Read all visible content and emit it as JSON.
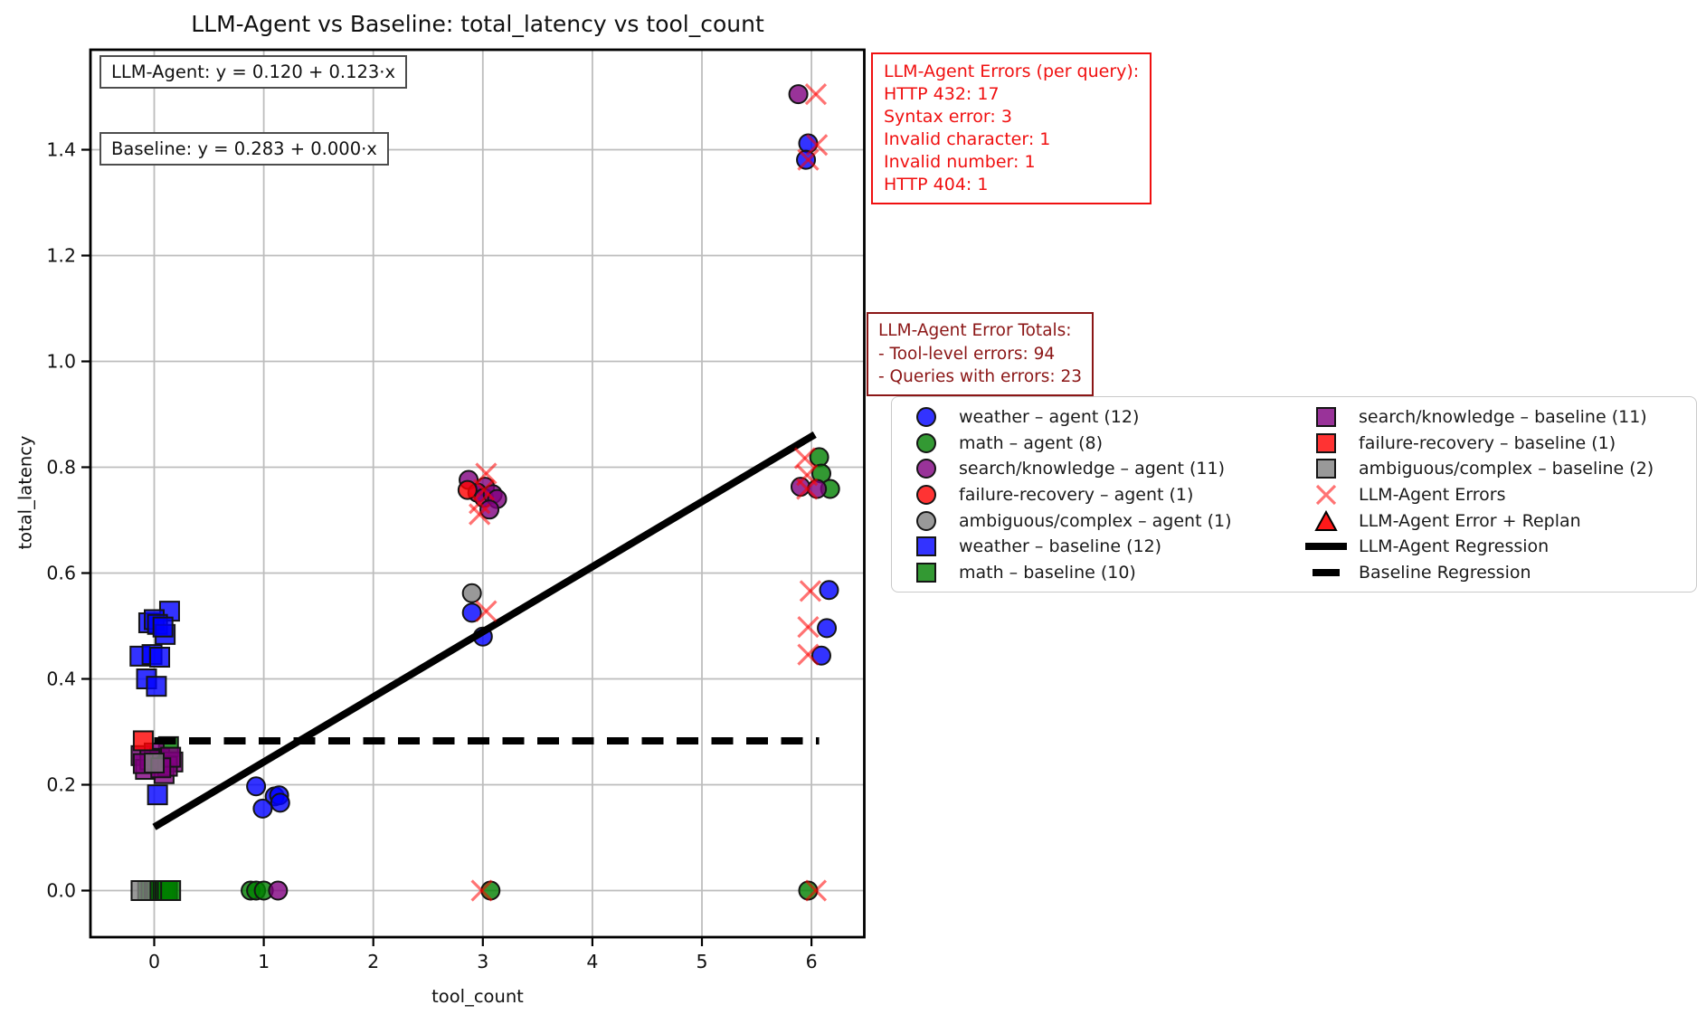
{
  "title": "LLM-Agent vs Baseline: total_latency vs tool_count",
  "axes": {
    "xlabel": "tool_count",
    "ylabel": "total_latency",
    "x_ticks": [
      0,
      1,
      2,
      3,
      4,
      5,
      6
    ],
    "x_tick_labels": [
      "0",
      "1",
      "2",
      "3",
      "4",
      "5",
      "6"
    ],
    "y_ticks": [
      0.0,
      0.2,
      0.4,
      0.6,
      0.8,
      1.0,
      1.2,
      1.4
    ],
    "y_tick_labels": [
      "0.0",
      "0.2",
      "0.4",
      "0.6",
      "0.8",
      "1.0",
      "1.2",
      "1.4"
    ],
    "xlim": [
      -0.58,
      6.48
    ],
    "ylim": [
      -0.09,
      1.59
    ],
    "grid": true
  },
  "annotations": {
    "agent_eq": "LLM-Agent: y = 0.120 + 0.123·x",
    "baseline_eq": "Baseline: y = 0.283 + 0.000·x",
    "error_box": {
      "title": "LLM-Agent Errors (per query):",
      "lines": [
        "HTTP 432: 17",
        "Syntax error: 3",
        "Invalid character: 1",
        "Invalid number: 1",
        "HTTP 404: 1"
      ],
      "color": "#f01010"
    },
    "totals_box": {
      "title": "LLM-Agent Error Totals:",
      "lines": [
        "- Tool-level errors: 94",
        "- Queries with errors: 23"
      ],
      "color": "#8b1616"
    }
  },
  "chart_data": {
    "type": "scatter",
    "title": "LLM-Agent vs Baseline: total_latency vs tool_count",
    "xlabel": "tool_count",
    "ylabel": "total_latency",
    "legend_position": "center right",
    "series": [
      {
        "name": "weather – agent (12)",
        "marker": "circle",
        "color": "#0000ff",
        "points": [
          [
            0.93,
            0.197
          ],
          [
            1.1,
            0.178
          ],
          [
            1.14,
            0.18
          ],
          [
            1.15,
            0.166
          ],
          [
            0.99,
            0.155
          ],
          [
            2.9,
            0.525
          ],
          [
            3.0,
            0.48
          ],
          [
            5.97,
            1.412
          ],
          [
            5.95,
            1.381
          ],
          [
            6.16,
            0.568
          ],
          [
            6.14,
            0.496
          ],
          [
            6.09,
            0.444
          ]
        ]
      },
      {
        "name": "math – agent (8)",
        "marker": "circle",
        "color": "#008000",
        "points": [
          [
            0.88,
            0.0
          ],
          [
            0.93,
            0.0
          ],
          [
            1.0,
            0.0
          ],
          [
            3.07,
            0.0
          ],
          [
            5.97,
            0.0
          ],
          [
            6.07,
            0.819
          ],
          [
            6.09,
            0.788
          ],
          [
            6.17,
            0.759
          ]
        ]
      },
      {
        "name": "search/knowledge – agent (11)",
        "marker": "circle",
        "color": "#800080",
        "points": [
          [
            1.13,
            0.0
          ],
          [
            2.87,
            0.776
          ],
          [
            3.02,
            0.763
          ],
          [
            2.95,
            0.752
          ],
          [
            3.01,
            0.742
          ],
          [
            3.09,
            0.749
          ],
          [
            3.13,
            0.74
          ],
          [
            3.06,
            0.72
          ],
          [
            5.88,
            1.505
          ],
          [
            5.9,
            0.763
          ],
          [
            6.05,
            0.759
          ]
        ]
      },
      {
        "name": "failure-recovery – agent (1)",
        "marker": "circle",
        "color": "#ff0000",
        "points": [
          [
            2.86,
            0.757
          ]
        ]
      },
      {
        "name": "ambiguous/complex – agent (1)",
        "marker": "circle",
        "color": "#808080",
        "points": [
          [
            2.9,
            0.562
          ]
        ]
      },
      {
        "name": "weather – baseline (12)",
        "marker": "square",
        "color": "#0000ff",
        "points": [
          [
            0.14,
            0.528
          ],
          [
            -0.05,
            0.506
          ],
          [
            0.0,
            0.512
          ],
          [
            0.03,
            0.503
          ],
          [
            0.1,
            0.484
          ],
          [
            -0.13,
            0.443
          ],
          [
            -0.02,
            0.446
          ],
          [
            0.05,
            0.441
          ],
          [
            -0.07,
            0.4
          ],
          [
            0.02,
            0.386
          ],
          [
            0.08,
            0.498
          ],
          [
            0.03,
            0.181
          ]
        ]
      },
      {
        "name": "math – baseline (10)",
        "marker": "square",
        "color": "#008000",
        "points": [
          [
            0.13,
            0.272
          ],
          [
            -0.06,
            0.0
          ],
          [
            -0.03,
            0.0
          ],
          [
            0.0,
            0.0
          ],
          [
            0.02,
            0.0
          ],
          [
            0.05,
            0.0
          ],
          [
            0.08,
            0.0
          ],
          [
            0.1,
            0.0
          ],
          [
            0.12,
            0.0
          ],
          [
            0.15,
            0.0
          ]
        ]
      },
      {
        "name": "search/knowledge – baseline (11)",
        "marker": "square",
        "color": "#800080",
        "points": [
          [
            -0.12,
            0.255
          ],
          [
            0.0,
            0.26
          ],
          [
            0.05,
            0.25
          ],
          [
            0.17,
            0.243
          ],
          [
            -0.08,
            0.229
          ],
          [
            0.09,
            0.221
          ],
          [
            -0.04,
            0.247
          ],
          [
            0.12,
            0.235
          ],
          [
            0.15,
            0.252
          ],
          [
            -0.1,
            0.24
          ],
          [
            0.06,
            0.232
          ]
        ]
      },
      {
        "name": "failure-recovery – baseline (1)",
        "marker": "square",
        "color": "#ff0000",
        "points": [
          [
            -0.1,
            0.283
          ]
        ]
      },
      {
        "name": "ambiguous/complex – baseline (2)",
        "marker": "square",
        "color": "#808080",
        "points": [
          [
            0.0,
            0.241
          ],
          [
            -0.12,
            0.0
          ]
        ]
      }
    ],
    "error_markers": {
      "name": "LLM-Agent Errors",
      "marker": "x",
      "color": "#ff0000",
      "points": [
        [
          3.03,
          0.788
        ],
        [
          3.01,
          0.757
        ],
        [
          2.97,
          0.732
        ],
        [
          2.97,
          0.711
        ],
        [
          3.03,
          0.528
        ],
        [
          2.99,
          0.0
        ],
        [
          6.04,
          1.505
        ],
        [
          6.05,
          1.409
        ],
        [
          5.97,
          1.381
        ],
        [
          5.94,
          0.817
        ],
        [
          5.96,
          0.785
        ],
        [
          5.96,
          0.759
        ],
        [
          5.99,
          0.566
        ],
        [
          5.97,
          0.498
        ],
        [
          5.97,
          0.446
        ],
        [
          6.04,
          0.0
        ]
      ]
    },
    "replan_markers": {
      "name": "LLM-Agent Error + Replan",
      "marker": "triangle",
      "color": "#ff0000",
      "points": []
    },
    "regressions": [
      {
        "name": "LLM-Agent Regression",
        "style": "solid",
        "intercept": 0.12,
        "slope": 0.123,
        "x_start": 0.0,
        "x_end": 6.03
      },
      {
        "name": "Baseline Regression",
        "style": "dashed",
        "intercept": 0.283,
        "slope": 0.0,
        "x_start": 0.0,
        "x_end": 6.07
      }
    ]
  }
}
